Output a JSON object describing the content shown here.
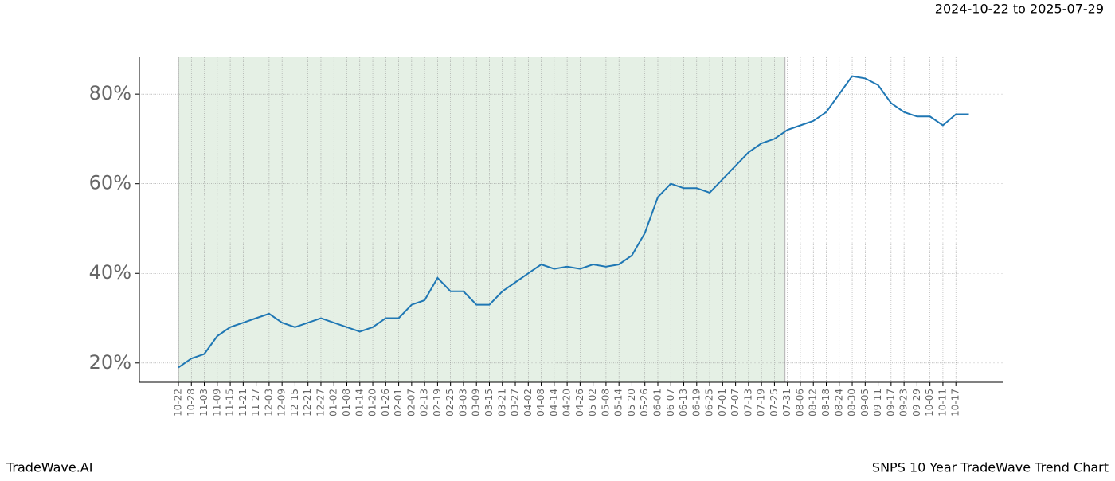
{
  "chart_data": {
    "type": "line",
    "subtitle": "2024-10-22 to 2025-07-29",
    "footer_left": "TradeWave.AI",
    "title": "SNPS 10 Year TradeWave Trend Chart",
    "categories": [
      "10-22",
      "10-28",
      "11-03",
      "11-09",
      "11-15",
      "11-21",
      "11-27",
      "12-03",
      "12-09",
      "12-15",
      "12-21",
      "12-27",
      "01-02",
      "01-08",
      "01-14",
      "01-20",
      "01-26",
      "02-01",
      "02-07",
      "02-13",
      "02-19",
      "02-25",
      "03-03",
      "03-09",
      "03-15",
      "03-21",
      "03-27",
      "04-02",
      "04-08",
      "04-14",
      "04-20",
      "04-26",
      "05-02",
      "05-08",
      "05-14",
      "05-20",
      "05-26",
      "06-01",
      "06-07",
      "06-13",
      "06-19",
      "06-25",
      "07-01",
      "07-07",
      "07-13",
      "07-19",
      "07-25",
      "07-31",
      "08-06",
      "08-12",
      "08-18",
      "08-24",
      "08-30",
      "09-05",
      "09-11",
      "09-17",
      "09-23",
      "09-29",
      "10-05",
      "10-11",
      "10-17",
      null
    ],
    "series": [
      {
        "color": "#1f77b4",
        "values": [
          19,
          21,
          22,
          26,
          28,
          29,
          30,
          31,
          29,
          28,
          29,
          30,
          29,
          28,
          27,
          28,
          30,
          30,
          33,
          34,
          39,
          36,
          36,
          33,
          33,
          36,
          38,
          40,
          42,
          41,
          41.5,
          41,
          42,
          41.5,
          42,
          44,
          49,
          57,
          60,
          59,
          59,
          58,
          61,
          64,
          67,
          69,
          70,
          72,
          73,
          74,
          76,
          80,
          84,
          83.5,
          82,
          78,
          76,
          75,
          75,
          73,
          75.5,
          75.5
        ]
      }
    ],
    "shaded_span": [
      0,
      46.8
    ],
    "shade_color": "#e5f0e5",
    "ylim": [
      15.7,
      88.2
    ],
    "yticks": [
      {
        "value": 20,
        "label": "20%"
      },
      {
        "value": 40,
        "label": "40%"
      },
      {
        "value": 60,
        "label": "60%"
      },
      {
        "value": 80,
        "label": "80%"
      }
    ],
    "grid": true
  }
}
